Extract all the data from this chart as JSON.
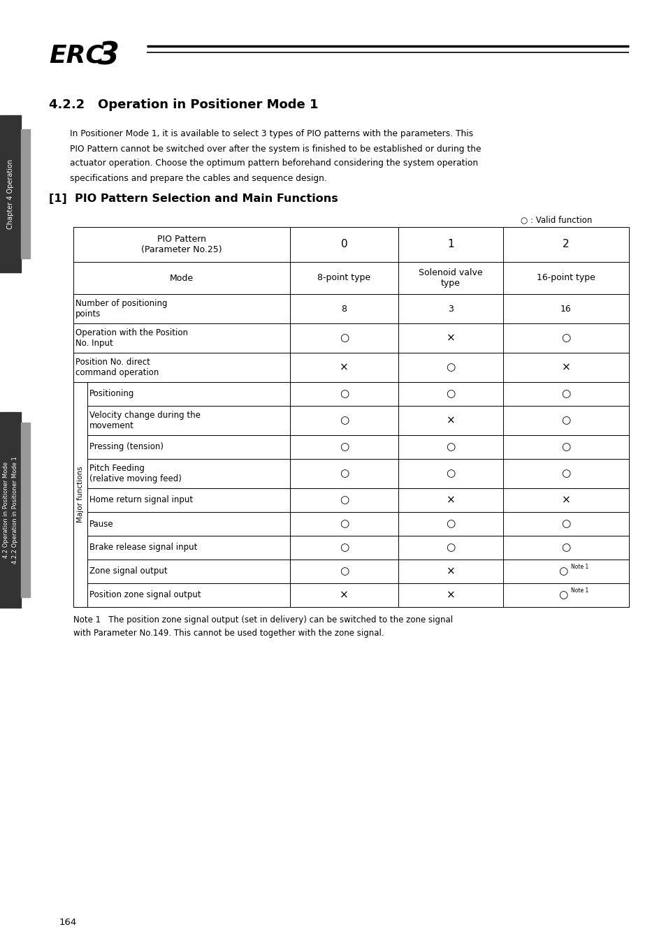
{
  "title_section": "4.2.2   Operation in Positioner Mode 1",
  "body_text_lines": [
    "In Positioner Mode 1, it is available to select 3 types of PIO patterns with the parameters. This",
    "PIO Pattern cannot be switched over after the system is finished to be established or during the",
    "actuator operation. Choose the optimum pattern beforehand considering the system operation",
    "specifications and prepare the cables and sequence design."
  ],
  "section_header": "[1]  PIO Pattern Selection and Main Functions",
  "valid_note": "○ : Valid function",
  "col_header1": [
    "PIO Pattern\n(Parameter No.25)",
    "0",
    "1",
    "2"
  ],
  "col_header2": [
    "Mode",
    "8-point type",
    "Solenoid valve\ntype",
    "16-point type"
  ],
  "table_rows": [
    {
      "label": "Number of positioning\npoints",
      "vals": [
        "8",
        "3",
        "16"
      ],
      "major": false
    },
    {
      "label": "Operation with the Position\nNo. Input",
      "vals": [
        "○",
        "×",
        "○"
      ],
      "major": false
    },
    {
      "label": "Position No. direct\ncommand operation",
      "vals": [
        "×",
        "○",
        "×"
      ],
      "major": false
    },
    {
      "label": "Positioning",
      "vals": [
        "○",
        "○",
        "○"
      ],
      "major": true
    },
    {
      "label": "Velocity change during the\nmovement",
      "vals": [
        "○",
        "×",
        "○"
      ],
      "major": true
    },
    {
      "label": "Pressing (tension)",
      "vals": [
        "○",
        "○",
        "○"
      ],
      "major": true
    },
    {
      "label": "Pitch Feeding\n(relative moving feed)",
      "vals": [
        "○",
        "○",
        "○"
      ],
      "major": true
    },
    {
      "label": "Home return signal input",
      "vals": [
        "○",
        "×",
        "×"
      ],
      "major": true
    },
    {
      "label": "Pause",
      "vals": [
        "○",
        "○",
        "○"
      ],
      "major": true
    },
    {
      "label": "Brake release signal input",
      "vals": [
        "○",
        "○",
        "○"
      ],
      "major": true
    },
    {
      "label": "Zone signal output",
      "vals": [
        "○",
        "×",
        "○Note1"
      ],
      "major": true
    },
    {
      "label": "Position zone signal output",
      "vals": [
        "×",
        "×",
        "○Note1"
      ],
      "major": true
    }
  ],
  "note_line1": "Note 1   The position zone signal output (set in delivery) can be switched to the zone signal",
  "note_line2": "            with Parameter No.149. This cannot be used together with the zone signal.",
  "sidebar_top_text": "Chapter 4 Operation",
  "sidebar_bot1": "4.2 Operation in Positioner Mode",
  "sidebar_bot2": "4.2.2 Operation in Positioner Mode 1",
  "page_number": "164",
  "bg_color": "#ffffff",
  "sidebar_dark": "#333333",
  "sidebar_gray": "#999999"
}
